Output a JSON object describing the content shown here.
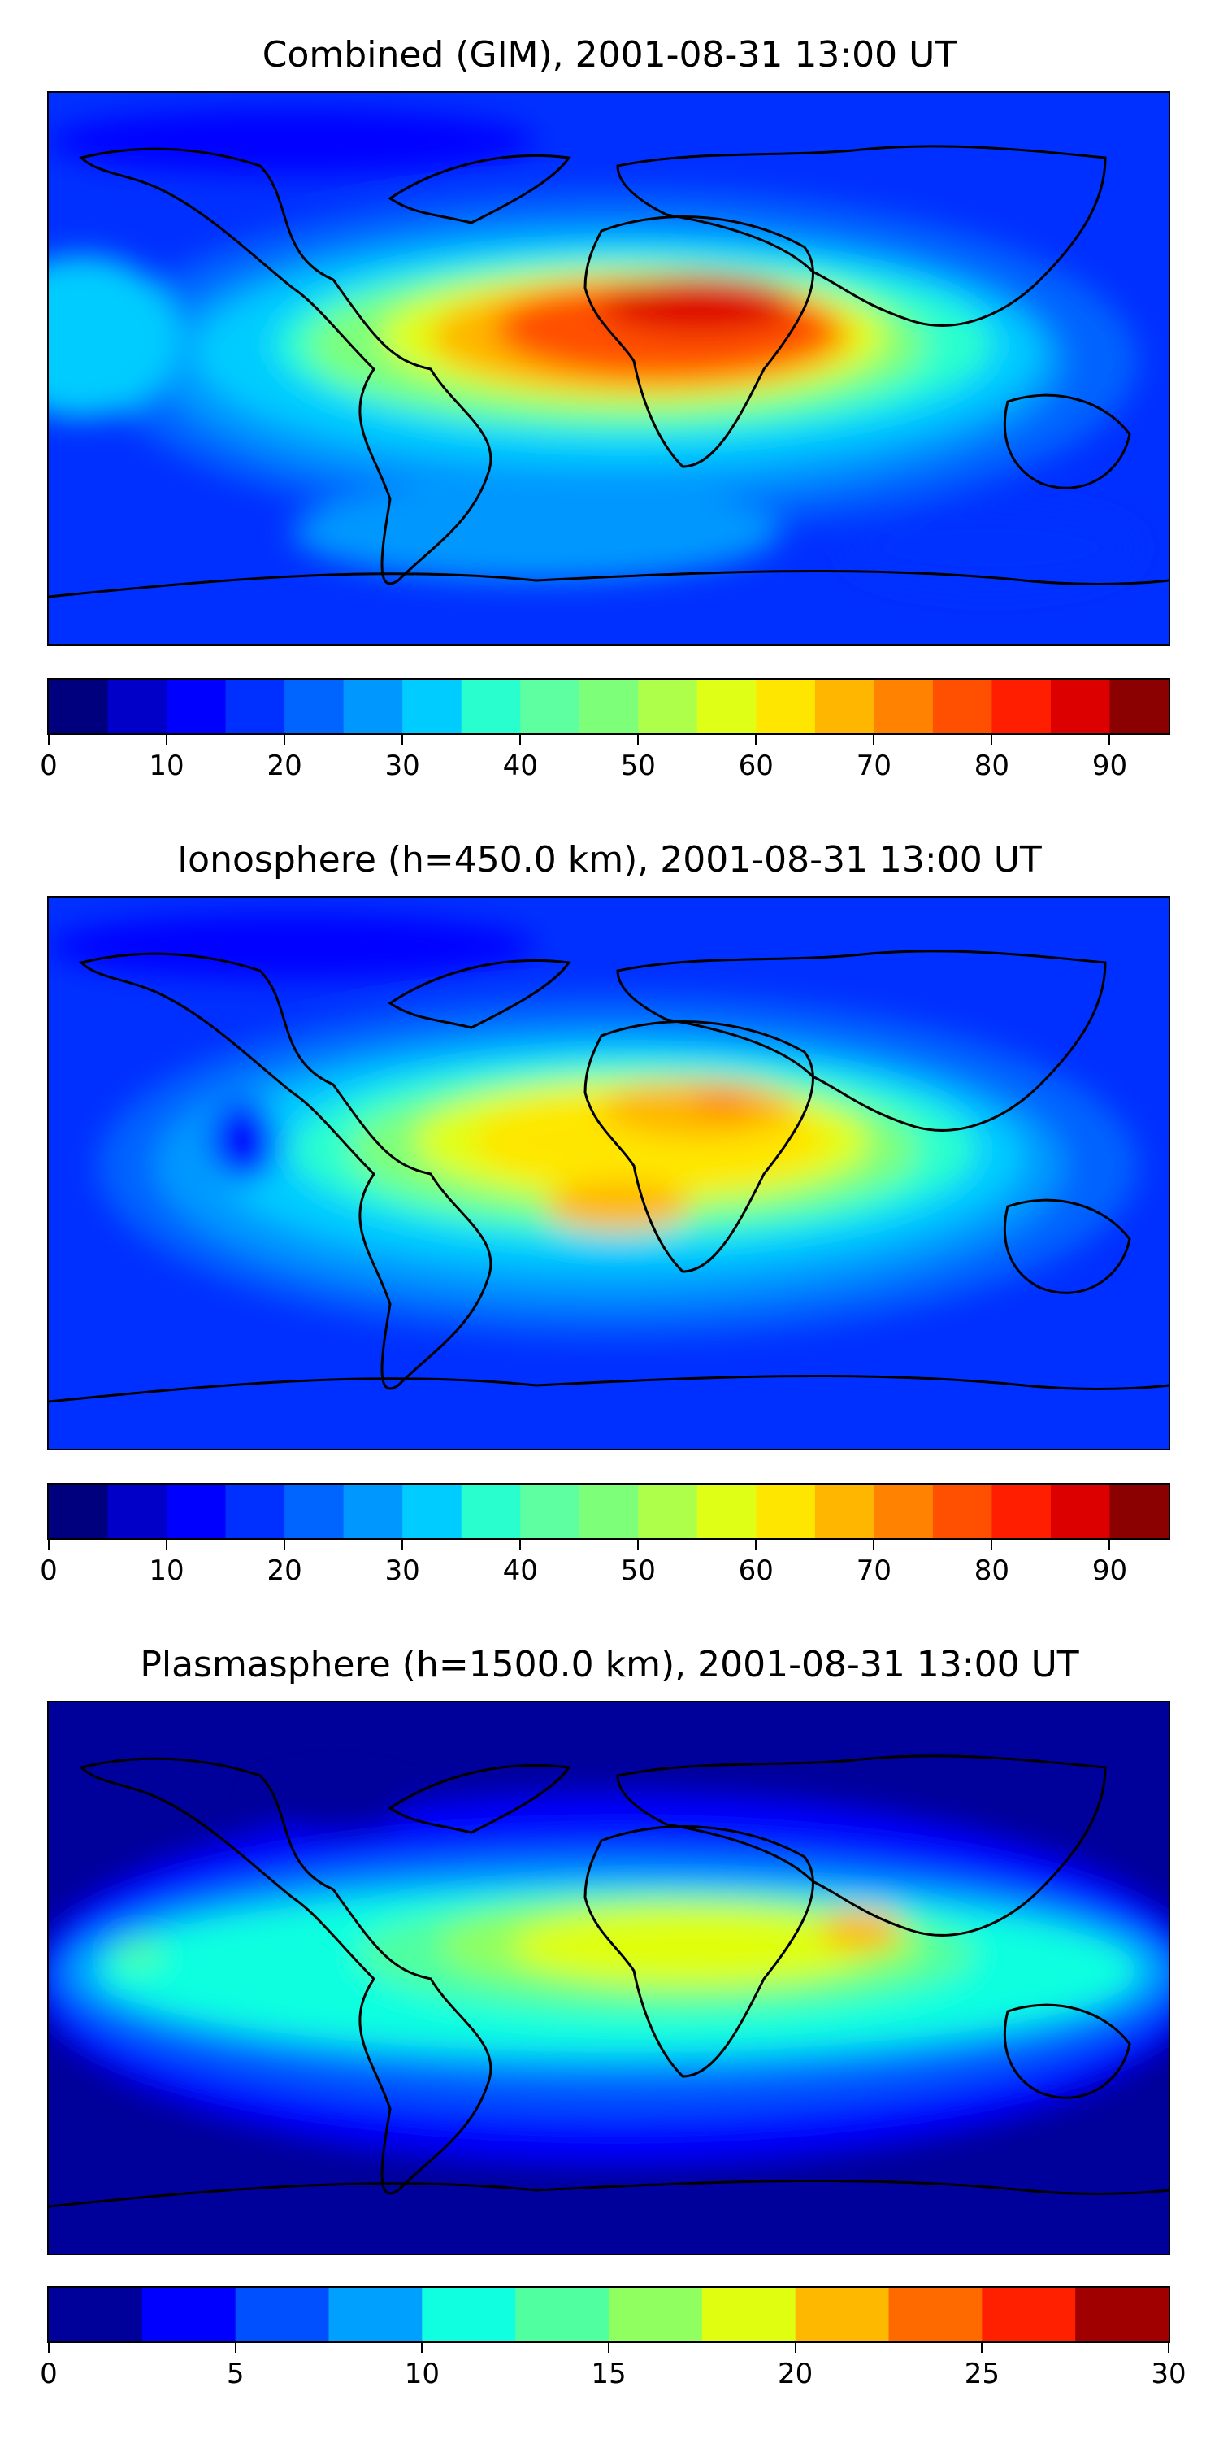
{
  "panels": [
    {
      "id": "combined",
      "title": "Combined (GIM), 2001-08-31 13:00 UT",
      "colorbar": {
        "min": 0,
        "max": 95,
        "step": 5,
        "ticks": [
          "0",
          "10",
          "20",
          "30",
          "40",
          "50",
          "60",
          "70",
          "80",
          "90"
        ],
        "tick_values": [
          0,
          10,
          20,
          30,
          40,
          50,
          60,
          70,
          80,
          90
        ],
        "colors": [
          "#00007f",
          "#0000c8",
          "#0000ff",
          "#0030ff",
          "#0064ff",
          "#0098ff",
          "#00ccff",
          "#29ffce",
          "#5dffa0",
          "#7dff7a",
          "#aeff49",
          "#e0ff16",
          "#ffe600",
          "#ffb600",
          "#ff8200",
          "#ff4f00",
          "#ff1e00",
          "#dd0000",
          "#8b0000"
        ]
      }
    },
    {
      "id": "ionosphere",
      "title": "Ionosphere  (h=450.0 km), 2001-08-31 13:00 UT",
      "colorbar": {
        "min": 0,
        "max": 95,
        "step": 5,
        "ticks": [
          "0",
          "10",
          "20",
          "30",
          "40",
          "50",
          "60",
          "70",
          "80",
          "90"
        ],
        "tick_values": [
          0,
          10,
          20,
          30,
          40,
          50,
          60,
          70,
          80,
          90
        ],
        "colors": [
          "#00007f",
          "#0000c8",
          "#0000ff",
          "#0030ff",
          "#0064ff",
          "#0098ff",
          "#00ccff",
          "#29ffce",
          "#5dffa0",
          "#7dff7a",
          "#aeff49",
          "#e0ff16",
          "#ffe600",
          "#ffb600",
          "#ff8200",
          "#ff4f00",
          "#ff1e00",
          "#dd0000",
          "#8b0000"
        ]
      }
    },
    {
      "id": "plasmasphere",
      "title": "Plasmasphere (h=1500.0 km), 2001-08-31 13:00 UT",
      "colorbar": {
        "min": 0,
        "max": 30,
        "step": 2.5,
        "ticks": [
          "0",
          "5",
          "10",
          "15",
          "20",
          "25",
          "30"
        ],
        "tick_values": [
          0,
          5,
          10,
          15,
          20,
          25,
          30
        ],
        "colors": [
          "#00009a",
          "#0000ff",
          "#0050ff",
          "#00a0ff",
          "#10ffe0",
          "#50ffa0",
          "#90ff60",
          "#e0ff10",
          "#ffb800",
          "#ff6a00",
          "#ff2000",
          "#a00000"
        ]
      }
    }
  ]
}
